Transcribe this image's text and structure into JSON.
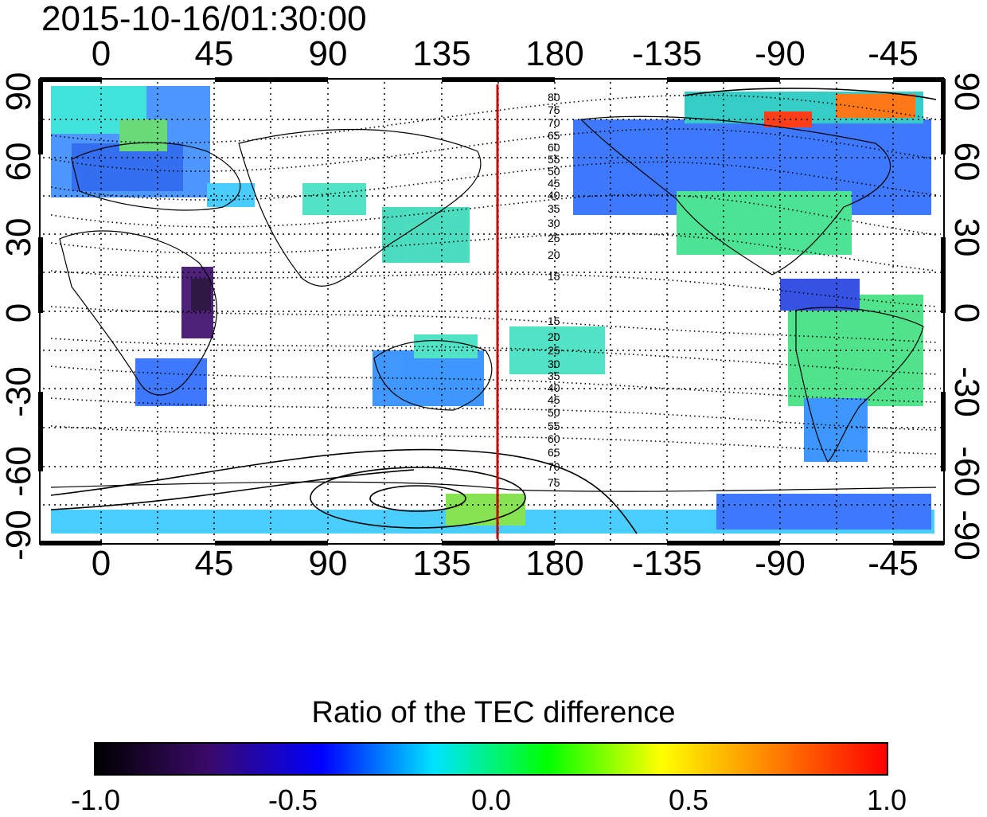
{
  "timestamp": "2015-10-16/01:30:00",
  "lon_ticks": [
    "0",
    "45",
    "90",
    "135",
    "180",
    "-135",
    "-90",
    "-45"
  ],
  "lat_ticks": [
    "90",
    "60",
    "30",
    "0",
    "-30",
    "-60",
    "-90"
  ],
  "contour_labels_north": [
    "80",
    "75",
    "70",
    "65",
    "60",
    "55",
    "50",
    "45",
    "40",
    "35",
    "30",
    "25",
    "20",
    "15"
  ],
  "contour_labels_south": [
    "15",
    "20",
    "25",
    "30",
    "35",
    "40",
    "45",
    "50",
    "55",
    "60",
    "65",
    "70",
    "75"
  ],
  "colorbar": {
    "title": "Ratio of the TEC difference",
    "labels": [
      "-1.0",
      "-0.5",
      "0.0",
      "0.5",
      "1.0"
    ],
    "colors": [
      "#000000",
      "#3a0a6a",
      "#0000ff",
      "#00e5ff",
      "#00ff00",
      "#ffff00",
      "#ff7f00",
      "#ff0000"
    ]
  },
  "terminator_color": "#d40000"
}
